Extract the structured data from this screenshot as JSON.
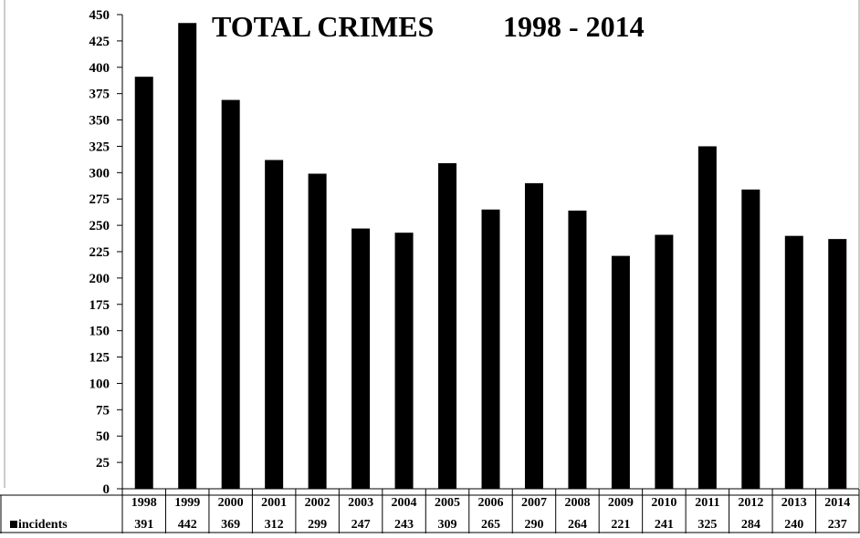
{
  "chart_data": {
    "type": "bar",
    "title": "TOTAL CRIMES",
    "subtitle": "1998 - 2014",
    "categories": [
      "1998",
      "1999",
      "2000",
      "2001",
      "2002",
      "2003",
      "2004",
      "2005",
      "2006",
      "2007",
      "2008",
      "2009",
      "2010",
      "2011",
      "2012",
      "2013",
      "2014"
    ],
    "series": [
      {
        "name": "incidents",
        "color": "#000000",
        "values": [
          391,
          442,
          369,
          312,
          299,
          247,
          243,
          309,
          265,
          290,
          264,
          221,
          241,
          325,
          284,
          240,
          237
        ]
      }
    ],
    "ylim": [
      0,
      450
    ],
    "yticks": [
      0,
      25,
      50,
      75,
      100,
      125,
      150,
      175,
      200,
      225,
      250,
      275,
      300,
      325,
      350,
      375,
      400,
      425,
      450
    ],
    "grid": false,
    "legend": "data-table-left",
    "data_table": true
  }
}
